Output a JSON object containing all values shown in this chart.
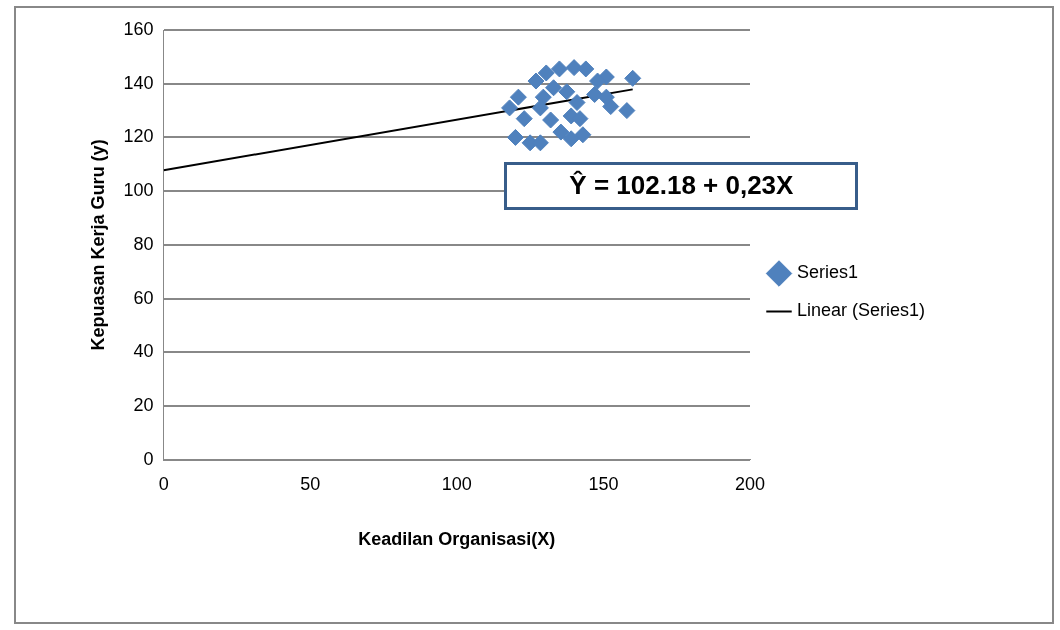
{
  "chart_data": {
    "type": "scatter",
    "xlabel": "Keadilan Organisasi(X)",
    "ylabel": "Kepuasan Kerja Guru (y)",
    "xlim": [
      0,
      200
    ],
    "xticks": [
      0,
      50,
      100,
      150,
      200
    ],
    "ylim": [
      0,
      160
    ],
    "yticks": [
      0,
      20,
      40,
      60,
      80,
      100,
      120,
      140,
      160
    ],
    "grid": "y",
    "legend": "right",
    "annotations": [
      "Ŷ = 102.18 + 0,23X"
    ],
    "series": [
      {
        "name": "Series1",
        "color": "#4f81bd",
        "marker": "diamond",
        "x": [
          118,
          121,
          120,
          125,
          128.5,
          123,
          127,
          130.5,
          135,
          140,
          144,
          151,
          160,
          158,
          152.5,
          139,
          143,
          135.5,
          132,
          147,
          137.5,
          133,
          141,
          129.5,
          139,
          142,
          128.5,
          148,
          151
        ],
        "values": [
          131,
          135,
          120,
          118,
          118,
          127,
          141,
          144,
          145.5,
          146,
          145.5,
          142.5,
          142,
          130,
          131.5,
          119.5,
          121,
          122,
          126.5,
          136,
          137,
          138.5,
          133,
          135,
          128,
          127,
          131,
          141,
          135
        ]
      },
      {
        "name": "Linear (Series1)",
        "type": "line",
        "marker": "none",
        "color": "#000000",
        "x": [
          0,
          160
        ],
        "values": [
          107.8,
          137.9
        ]
      }
    ]
  }
}
